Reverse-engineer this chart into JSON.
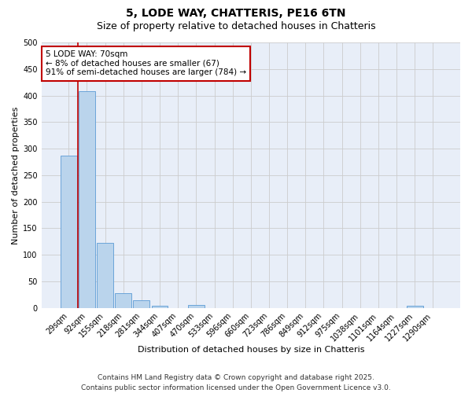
{
  "title_line1": "5, LODE WAY, CHATTERIS, PE16 6TN",
  "title_line2": "Size of property relative to detached houses in Chatteris",
  "xlabel": "Distribution of detached houses by size in Chatteris",
  "ylabel": "Number of detached properties",
  "categories": [
    "29sqm",
    "92sqm",
    "155sqm",
    "218sqm",
    "281sqm",
    "344sqm",
    "407sqm",
    "470sqm",
    "533sqm",
    "596sqm",
    "660sqm",
    "723sqm",
    "786sqm",
    "849sqm",
    "912sqm",
    "975sqm",
    "1038sqm",
    "1101sqm",
    "1164sqm",
    "1227sqm",
    "1290sqm"
  ],
  "values": [
    287,
    408,
    122,
    28,
    15,
    4,
    0,
    5,
    0,
    0,
    0,
    0,
    0,
    0,
    0,
    0,
    0,
    0,
    0,
    4,
    0
  ],
  "bar_color": "#bad4ec",
  "bar_edge_color": "#5b9bd5",
  "vline_color": "#c00000",
  "vline_pos": 0.52,
  "annotation_text": "5 LODE WAY: 70sqm\n← 8% of detached houses are smaller (67)\n91% of semi-detached houses are larger (784) →",
  "annotation_box_color": "white",
  "annotation_box_edge_color": "#c00000",
  "ylim": [
    0,
    500
  ],
  "yticks": [
    0,
    50,
    100,
    150,
    200,
    250,
    300,
    350,
    400,
    450,
    500
  ],
  "grid_color": "#cccccc",
  "background_color": "#e8eef8",
  "footer_line1": "Contains HM Land Registry data © Crown copyright and database right 2025.",
  "footer_line2": "Contains public sector information licensed under the Open Government Licence v3.0.",
  "title_fontsize": 10,
  "subtitle_fontsize": 9,
  "axis_label_fontsize": 8,
  "tick_fontsize": 7,
  "annotation_fontsize": 7.5,
  "footer_fontsize": 6.5
}
